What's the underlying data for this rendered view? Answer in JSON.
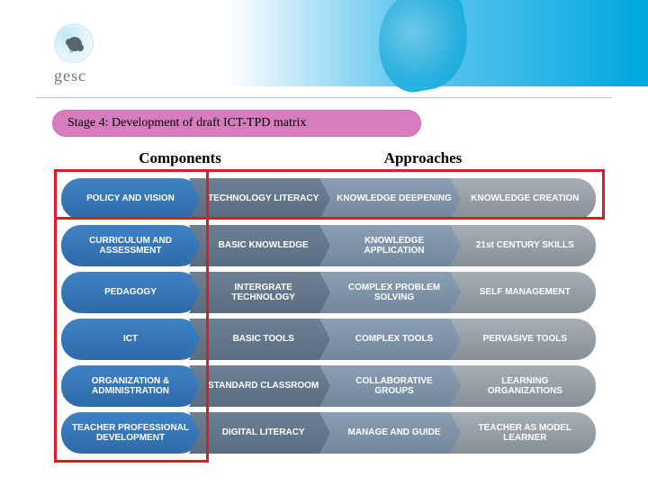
{
  "logo_text": "gesc",
  "stage_title": "Stage 4: Development of draft ICT-TPD matrix",
  "headers": {
    "left": "Components",
    "right": "Approaches"
  },
  "colors": {
    "stage_pill_bg": "#d77cbf",
    "stage_pill_text": "#000000",
    "stage_pill_border": "#c86bb2",
    "header_text": "#000000",
    "components": {
      "top": "#3e82c4",
      "bot": "#2f6aa8"
    },
    "approach_cols": [
      {
        "top": "#6e8094",
        "bot": "#5a6d80"
      },
      {
        "top": "#8b9fb4",
        "bot": "#72879c"
      },
      {
        "top": "#a6aeb6",
        "bot": "#868e96"
      }
    ],
    "highlight": "#e11b22"
  },
  "matrix": [
    {
      "component": "POLICY AND VISION",
      "steps": [
        "TECHNOLOGY LITERACY",
        "KNOWLEDGE DEEPENING",
        "KNOWLEDGE CREATION"
      ]
    },
    {
      "component": "CURRICULUM AND ASSESSMENT",
      "steps": [
        "BASIC KNOWLEDGE",
        "KNOWLEDGE APPLICATION",
        "21st CENTURY SKILLS"
      ]
    },
    {
      "component": "PEDAGOGY",
      "steps": [
        "INTERGRATE TECHNOLOGY",
        "COMPLEX PROBLEM SOLVING",
        "SELF MANAGEMENT"
      ]
    },
    {
      "component": "ICT",
      "steps": [
        "BASIC TOOLS",
        "COMPLEX TOOLS",
        "PERVASIVE TOOLS"
      ]
    },
    {
      "component": "ORGANIZATION & ADMINISTRATION",
      "steps": [
        "STANDARD CLASSROOM",
        "COLLABORATIVE GROUPS",
        "LEARNING ORGANIZATIONS"
      ]
    },
    {
      "component": "TEACHER PROFESSIONAL DEVELOPMENT",
      "steps": [
        "DIGITAL LITERACY",
        "MANAGE AND GUIDE",
        "TEACHER AS MODEL LEARNER"
      ]
    }
  ]
}
